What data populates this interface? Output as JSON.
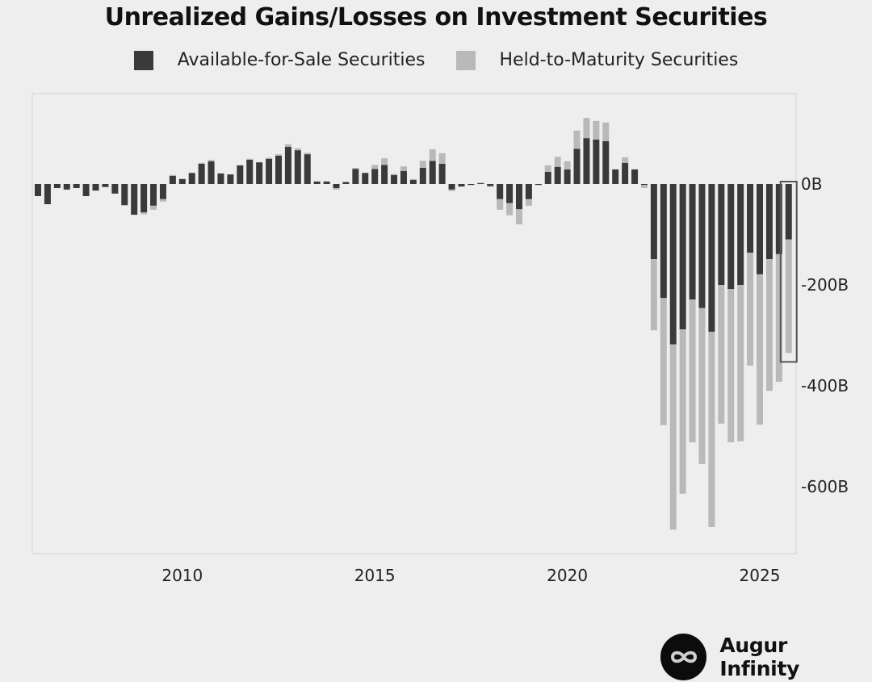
{
  "chart_data": {
    "type": "bar",
    "stacked": true,
    "title": "Unrealized Gains/Losses on Investment Securities",
    "xlabel": "",
    "ylabel": "",
    "frequency": "quarterly",
    "x_start": "2006Q2",
    "x_end": "2025Q4",
    "x_ticks": [
      "2010",
      "2015",
      "2020",
      "2025"
    ],
    "y_ticks": [
      "0B",
      "-200B",
      "-400B",
      "-600B"
    ],
    "y_tick_values": [
      0,
      -200,
      -400,
      -600
    ],
    "ylim": [
      -730,
      180
    ],
    "units": "Billions USD",
    "grid": false,
    "legend_position": "top",
    "highlight_last_bar": true,
    "series": [
      {
        "name": "Available-for-Sale Securities",
        "color": "#3a3a3a",
        "values": [
          -24,
          -40,
          -8,
          -11,
          -8,
          -24,
          -13,
          -6,
          -19,
          -42,
          -61,
          -56,
          -43,
          -30,
          16,
          10,
          22,
          40,
          45,
          21,
          19,
          37,
          48,
          43,
          50,
          56,
          74,
          67,
          59,
          5,
          5,
          -8,
          4,
          30,
          22,
          30,
          38,
          18,
          26,
          8,
          32,
          46,
          40,
          -11,
          -5,
          -1,
          2,
          -4,
          -30,
          -38,
          -50,
          -30,
          -1,
          24,
          34,
          29,
          70,
          91,
          88,
          85,
          29,
          42,
          29,
          -2,
          -149,
          -226,
          -318,
          -288,
          -229,
          -246,
          -293,
          -200,
          -208,
          -200,
          -136,
          -179,
          -149,
          -139,
          -110
        ]
      },
      {
        "name": "Held-to-Maturity Securities",
        "color": "#b9b9b9",
        "values": [
          0,
          0,
          0,
          0,
          0,
          0,
          0,
          0,
          0,
          0,
          0,
          -4,
          -8,
          -5,
          2,
          0,
          0,
          2,
          3,
          0,
          0,
          0,
          2,
          0,
          2,
          3,
          5,
          4,
          3,
          0,
          0,
          -3,
          0,
          2,
          0,
          8,
          13,
          2,
          9,
          2,
          14,
          23,
          21,
          -3,
          0,
          0,
          0,
          -1,
          -21,
          -24,
          -30,
          -13,
          0,
          13,
          20,
          16,
          36,
          40,
          37,
          37,
          0,
          11,
          0,
          -6,
          -141,
          -252,
          -367,
          -326,
          -283,
          -309,
          -387,
          -275,
          -304,
          -310,
          -224,
          -298,
          -261,
          -253,
          -225
        ]
      }
    ]
  },
  "branding": {
    "name": "Augur Infinity",
    "icon": "infinity-icon"
  }
}
